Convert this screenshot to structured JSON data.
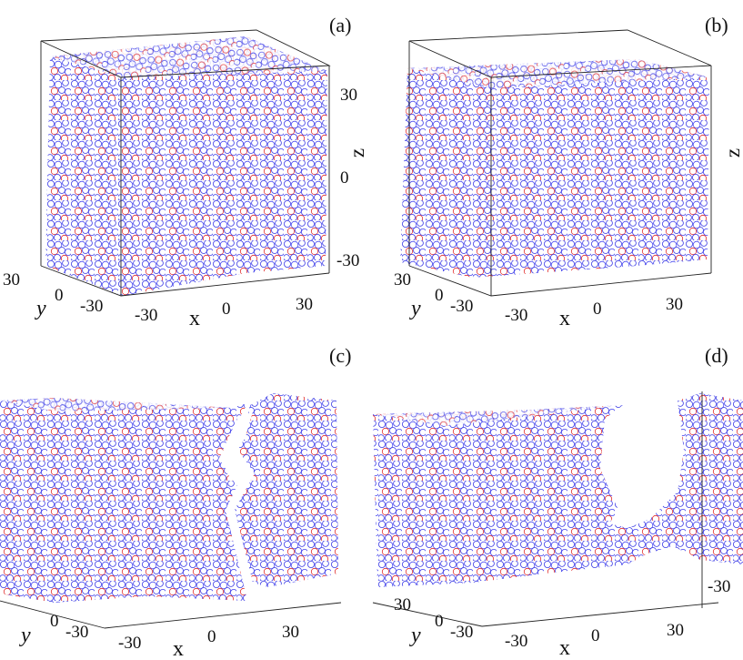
{
  "panels": [
    {
      "label": "(a)",
      "axes": {
        "x": {
          "name": "x",
          "ticks": [
            "-30",
            "0",
            "30"
          ]
        },
        "y": {
          "name": "y",
          "ticks": [
            "30",
            "0",
            "-30"
          ]
        },
        "z": {
          "name": "z",
          "ticks": [
            "30",
            "0",
            "-30"
          ]
        }
      }
    },
    {
      "label": "(b)",
      "axes": {
        "x": {
          "name": "x",
          "ticks": [
            "-30",
            "0",
            "30"
          ]
        },
        "y": {
          "name": "y",
          "ticks": [
            "30",
            "0",
            "-30"
          ]
        },
        "z": {
          "name": "z",
          "ticks": []
        }
      }
    },
    {
      "label": "(c)",
      "axes": {
        "x": {
          "name": "x",
          "ticks": [
            "-30",
            "0",
            "30"
          ]
        },
        "y": {
          "name": "y",
          "ticks": [
            "0",
            "-30"
          ]
        },
        "z": {
          "name": "",
          "ticks": []
        }
      }
    },
    {
      "label": "(d)",
      "axes": {
        "x": {
          "name": "x",
          "ticks": [
            "-30",
            "0",
            "30"
          ]
        },
        "y": {
          "name": "y",
          "ticks": [
            "30",
            "0",
            "-30"
          ]
        },
        "z": {
          "name": "",
          "ticks": [
            "-30"
          ]
        }
      }
    }
  ],
  "colors": {
    "particle_primary": "#3a3ae6",
    "particle_secondary": "#e23030",
    "frame": "#222222"
  }
}
